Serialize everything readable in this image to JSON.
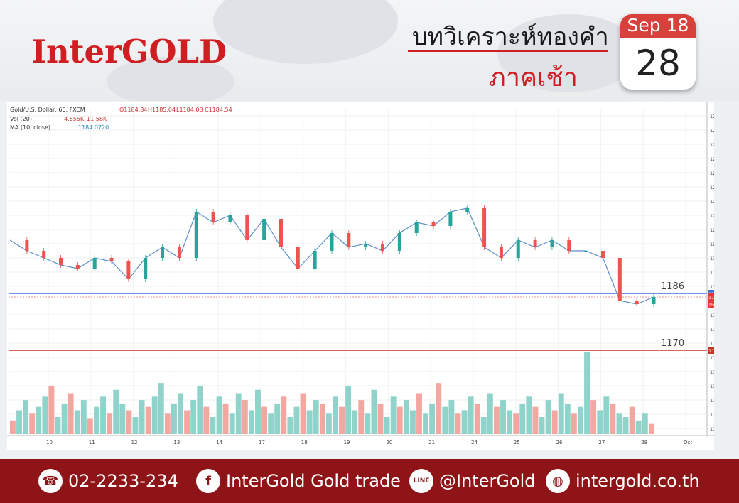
{
  "brand": {
    "logo": "InterGOLD",
    "title_th": "บทวิเคราะห์ทองคำ",
    "subtitle_th": "ภาคเช้า"
  },
  "calendar": {
    "month_year": "Sep 18",
    "day": "28"
  },
  "legend": {
    "symbol": "Gold/U.S. Dollar, 60, FXCM",
    "ohlc": [
      {
        "label": "O",
        "value": "1184.84"
      },
      {
        "label": "H",
        "value": "1185.04"
      },
      {
        "label": "L",
        "value": "1184.08"
      },
      {
        "label": "C",
        "value": "1184.54"
      }
    ],
    "vol_label": "Vol (20)",
    "vol_values": [
      "4.655K",
      "11.58K"
    ],
    "ma_label": "MA (10, close)",
    "ma_value": "1184.0720"
  },
  "chart_data": {
    "type": "line",
    "price_axis": {
      "ylim": [
        1146,
        1238
      ],
      "ticks": [
        1236,
        1232,
        1228,
        1224,
        1220,
        1216,
        1212,
        1208,
        1204,
        1200,
        1196,
        1192,
        1188,
        1180,
        1176,
        1172,
        1168,
        1164,
        1160,
        1156,
        1152,
        1148
      ]
    },
    "x_labels": [
      "10",
      "11",
      "12",
      "13",
      "14",
      "17",
      "18",
      "19",
      "20",
      "21",
      "24",
      "25",
      "26",
      "27",
      "28",
      "Oct"
    ],
    "series": [
      {
        "values": [
          1201,
          1198,
          1196,
          1194,
          1193,
          1196,
          1195,
          1190,
          1196,
          1199,
          1196,
          1209,
          1206,
          1208,
          1201,
          1207,
          1199,
          1193,
          1198,
          1203,
          1199,
          1200,
          1198,
          1203,
          1206,
          1205,
          1209,
          1210,
          1199,
          1196,
          1201,
          1199,
          1201,
          1198,
          1198,
          1196,
          1184,
          1183,
          1185
        ]
      }
    ],
    "levels": [
      {
        "value": 1186,
        "label": "1186",
        "tag": "1185.95",
        "color": "#3f6ee0"
      },
      {
        "value": 1170,
        "label": "1170",
        "tag": "1173.70",
        "color": "#cc3322"
      }
    ],
    "current_price": {
      "tag": "1184.54",
      "time": "06:49"
    },
    "volume": [
      8,
      14,
      20,
      12,
      16,
      22,
      28,
      10,
      18,
      24,
      14,
      20,
      9,
      16,
      22,
      12,
      26,
      18,
      14,
      10,
      20,
      16,
      22,
      30,
      12,
      18,
      24,
      14,
      20,
      28,
      16,
      10,
      22,
      18,
      12,
      24,
      20,
      14,
      26,
      16,
      12,
      18,
      22,
      10,
      16,
      24,
      14,
      20,
      18,
      12,
      22,
      16,
      28,
      14,
      20,
      12,
      26,
      18,
      10,
      22,
      16,
      20,
      14,
      24,
      12,
      18,
      30,
      16,
      20,
      12,
      14,
      22,
      18,
      10,
      24,
      16,
      20,
      14,
      12,
      18,
      22,
      16,
      10,
      20,
      14,
      24,
      18,
      12,
      16,
      48,
      20,
      14,
      22,
      18,
      12,
      10,
      16,
      8,
      12,
      6
    ]
  },
  "footer": {
    "phone": "02-2233-234",
    "facebook": "InterGold Gold trade",
    "line": "@InterGold",
    "web": "intergold.co.th",
    "line_badge": "LINE",
    "fb_badge": "f",
    "phone_badge": "☎",
    "web_badge": "◍"
  }
}
